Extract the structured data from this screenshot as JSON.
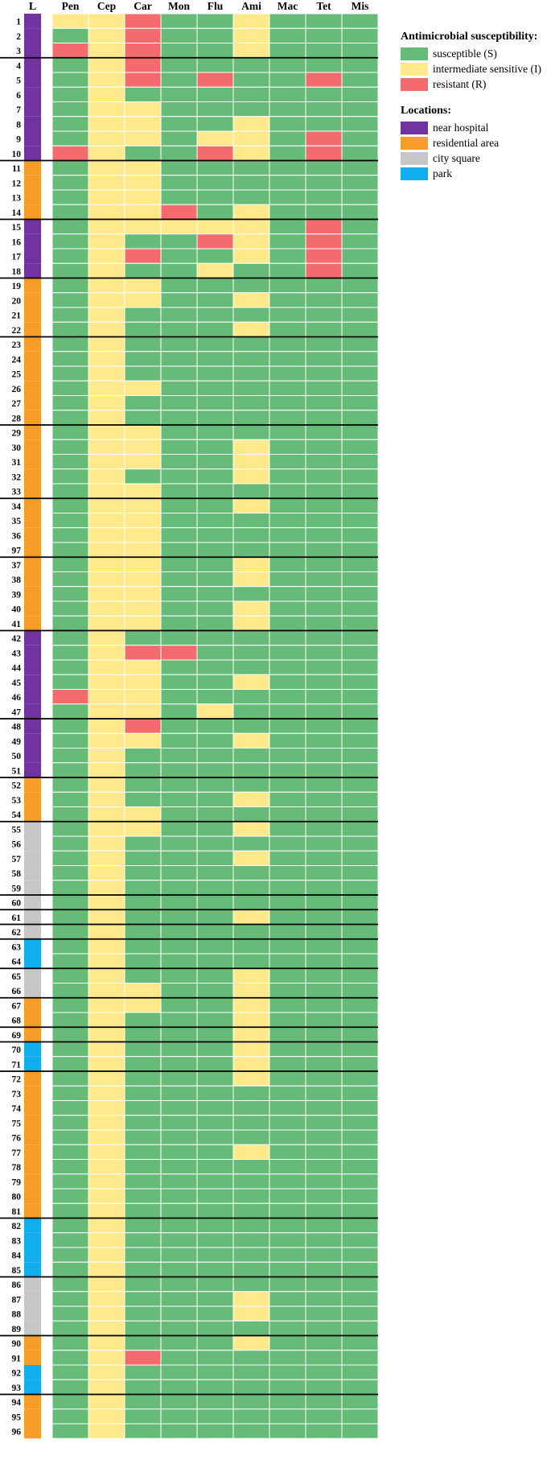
{
  "colors": {
    "S": "#66bb78",
    "I": "#ffe98a",
    "R": "#f36b6d",
    "near hospital": "#7033a0",
    "residential area": "#f79d27",
    "city square": "#c6c6c6",
    "park": "#12adef"
  },
  "legend": {
    "susceptibility_title": "Antimicrobial susceptibility:",
    "susceptibility_items": [
      {
        "key": "S",
        "label": "susceptible (S)"
      },
      {
        "key": "I",
        "label": "intermediate sensitive (I)"
      },
      {
        "key": "R",
        "label": "resistant (R)"
      }
    ],
    "locations_title": "Locations:",
    "location_items": [
      {
        "key": "near hospital",
        "label": "near hospital"
      },
      {
        "key": "residential area",
        "label": "residential area"
      },
      {
        "key": "city square",
        "label": "city square"
      },
      {
        "key": "park",
        "label": "park"
      }
    ]
  },
  "chart_data": {
    "type": "heatmap",
    "location_header": "L",
    "columns": [
      "Pen",
      "Cep",
      "Car",
      "Mon",
      "Flu",
      "Ami",
      "Mac",
      "Tet",
      "Mis"
    ],
    "rows": [
      {
        "id": "1",
        "loc": "near hospital",
        "v": "IIRSSISSS"
      },
      {
        "id": "2",
        "loc": "near hospital",
        "v": "SIRSSISSS"
      },
      {
        "id": "3",
        "loc": "near hospital",
        "v": "RIRSSISSS"
      },
      {
        "id": "4",
        "loc": "near hospital",
        "v": "SIRSSSSSS"
      },
      {
        "id": "5",
        "loc": "near hospital",
        "v": "SIRSRSSRS"
      },
      {
        "id": "6",
        "loc": "near hospital",
        "v": "SISSSSSSS"
      },
      {
        "id": "7",
        "loc": "near hospital",
        "v": "SIISSSSSS"
      },
      {
        "id": "8",
        "loc": "near hospital",
        "v": "SIISSISSS"
      },
      {
        "id": "9",
        "loc": "near hospital",
        "v": "SIISIISRS"
      },
      {
        "id": "10",
        "loc": "near hospital",
        "v": "RISSRISRS"
      },
      {
        "id": "11",
        "loc": "residential area",
        "v": "SIISSSSSS"
      },
      {
        "id": "12",
        "loc": "residential area",
        "v": "SIISSSSSS"
      },
      {
        "id": "13",
        "loc": "residential area",
        "v": "SIISSSSSS"
      },
      {
        "id": "14",
        "loc": "residential area",
        "v": "SIIRSISSS"
      },
      {
        "id": "15",
        "loc": "near hospital",
        "v": "SIIIIISRS"
      },
      {
        "id": "16",
        "loc": "near hospital",
        "v": "SISSRISRS"
      },
      {
        "id": "17",
        "loc": "near hospital",
        "v": "SIRSSISRS"
      },
      {
        "id": "18",
        "loc": "near hospital",
        "v": "SISSISSRS"
      },
      {
        "id": "19",
        "loc": "residential area",
        "v": "SIISSSSSS"
      },
      {
        "id": "20",
        "loc": "residential area",
        "v": "SIISSISSS"
      },
      {
        "id": "21",
        "loc": "residential area",
        "v": "SISSSSSSS"
      },
      {
        "id": "22",
        "loc": "residential area",
        "v": "SISSSISSS"
      },
      {
        "id": "23",
        "loc": "residential area",
        "v": "SISSSSSSS"
      },
      {
        "id": "24",
        "loc": "residential area",
        "v": "SISSSSSSS"
      },
      {
        "id": "25",
        "loc": "residential area",
        "v": "SISSSSSSS"
      },
      {
        "id": "26",
        "loc": "residential area",
        "v": "SIISSSSSS"
      },
      {
        "id": "27",
        "loc": "residential area",
        "v": "SISSSSSSS"
      },
      {
        "id": "28",
        "loc": "residential area",
        "v": "SISSSSSSS"
      },
      {
        "id": "29",
        "loc": "residential area",
        "v": "SIISSSSSS"
      },
      {
        "id": "30",
        "loc": "residential area",
        "v": "SIISSISSS"
      },
      {
        "id": "31",
        "loc": "residential area",
        "v": "SIISSISSS"
      },
      {
        "id": "32",
        "loc": "residential area",
        "v": "SISSSISSS"
      },
      {
        "id": "33",
        "loc": "residential area",
        "v": "SIISSSSSS"
      },
      {
        "id": "34",
        "loc": "residential area",
        "v": "SIISSISSS"
      },
      {
        "id": "35",
        "loc": "residential area",
        "v": "SIISSSSSS"
      },
      {
        "id": "36",
        "loc": "residential area",
        "v": "SIISSSSSS"
      },
      {
        "id": "97",
        "loc": "residential area",
        "v": "SIISSSSSS"
      },
      {
        "id": "37",
        "loc": "residential area",
        "v": "SIISSISSS"
      },
      {
        "id": "38",
        "loc": "residential area",
        "v": "SIISSISSS"
      },
      {
        "id": "39",
        "loc": "residential area",
        "v": "SIISSSSSS"
      },
      {
        "id": "40",
        "loc": "residential area",
        "v": "SIISSISSS"
      },
      {
        "id": "41",
        "loc": "residential area",
        "v": "SIISSISSS"
      },
      {
        "id": "42",
        "loc": "near hospital",
        "v": "SISSSSSSS"
      },
      {
        "id": "43",
        "loc": "near hospital",
        "v": "SIRRSSSSS"
      },
      {
        "id": "44",
        "loc": "near hospital",
        "v": "SIISSSSSS"
      },
      {
        "id": "45",
        "loc": "near hospital",
        "v": "SIISSISSS"
      },
      {
        "id": "46",
        "loc": "near hospital",
        "v": "RIISSSSSS"
      },
      {
        "id": "47",
        "loc": "near hospital",
        "v": "SIISISSSS"
      },
      {
        "id": "48",
        "loc": "near hospital",
        "v": "SIRSSSSSS"
      },
      {
        "id": "49",
        "loc": "near hospital",
        "v": "SIISSISSS"
      },
      {
        "id": "50",
        "loc": "near hospital",
        "v": "SISSSSSSS"
      },
      {
        "id": "51",
        "loc": "near hospital",
        "v": "SISSSSSSS"
      },
      {
        "id": "52",
        "loc": "residential area",
        "v": "SISSSSSSS"
      },
      {
        "id": "53",
        "loc": "residential area",
        "v": "SISSSISSS"
      },
      {
        "id": "54",
        "loc": "residential area",
        "v": "SIISSSSSS"
      },
      {
        "id": "55",
        "loc": "city square",
        "v": "SIISSISSS"
      },
      {
        "id": "56",
        "loc": "city square",
        "v": "SISSSSSSS"
      },
      {
        "id": "57",
        "loc": "city square",
        "v": "SISSSISSS"
      },
      {
        "id": "58",
        "loc": "city square",
        "v": "SISSSSSSS"
      },
      {
        "id": "59",
        "loc": "city square",
        "v": "SISSSSSSS"
      },
      {
        "id": "60",
        "loc": "city square",
        "v": "SISSSSSSS"
      },
      {
        "id": "61",
        "loc": "city square",
        "v": "SISSSISSS"
      },
      {
        "id": "62",
        "loc": "city square",
        "v": "SISSSSSSS"
      },
      {
        "id": "63",
        "loc": "park",
        "v": "SISSSSSSS"
      },
      {
        "id": "64",
        "loc": "park",
        "v": "SISSSSSSS"
      },
      {
        "id": "65",
        "loc": "city square",
        "v": "SISSSISSS"
      },
      {
        "id": "66",
        "loc": "city square",
        "v": "SIISSISSS"
      },
      {
        "id": "67",
        "loc": "residential area",
        "v": "SIISSISSS"
      },
      {
        "id": "68",
        "loc": "residential area",
        "v": "SISSSISSS"
      },
      {
        "id": "69",
        "loc": "residential area",
        "v": "SISSSISSS"
      },
      {
        "id": "70",
        "loc": "park",
        "v": "SISSSISSS"
      },
      {
        "id": "71",
        "loc": "park",
        "v": "SISSSISSS"
      },
      {
        "id": "72",
        "loc": "residential area",
        "v": "SISSSISSS"
      },
      {
        "id": "73",
        "loc": "residential area",
        "v": "SISSSSSSS"
      },
      {
        "id": "74",
        "loc": "residential area",
        "v": "SISSSSSSS"
      },
      {
        "id": "75",
        "loc": "residential area",
        "v": "SISSSSSSS"
      },
      {
        "id": "76",
        "loc": "residential area",
        "v": "SISSSSSSS"
      },
      {
        "id": "77",
        "loc": "residential area",
        "v": "SISSSISSS"
      },
      {
        "id": "78",
        "loc": "residential area",
        "v": "SISSSSSSS"
      },
      {
        "id": "79",
        "loc": "residential area",
        "v": "SISSSSSSS"
      },
      {
        "id": "80",
        "loc": "residential area",
        "v": "SISSSSSSS"
      },
      {
        "id": "81",
        "loc": "residential area",
        "v": "SISSSSSSS"
      },
      {
        "id": "82",
        "loc": "park",
        "v": "SISSSSSSS"
      },
      {
        "id": "83",
        "loc": "park",
        "v": "SISSSSSSS"
      },
      {
        "id": "84",
        "loc": "park",
        "v": "SISSSSSSS"
      },
      {
        "id": "85",
        "loc": "park",
        "v": "SISSSSSSS"
      },
      {
        "id": "86",
        "loc": "city square",
        "v": "SISSSSSSS"
      },
      {
        "id": "87",
        "loc": "city square",
        "v": "SISSSISSS"
      },
      {
        "id": "88",
        "loc": "city square",
        "v": "SISSSISSS"
      },
      {
        "id": "89",
        "loc": "city square",
        "v": "SISSSSSSS"
      },
      {
        "id": "90",
        "loc": "residential area",
        "v": "SISSSISSS"
      },
      {
        "id": "91",
        "loc": "residential area",
        "v": "SIRSSSSSS"
      },
      {
        "id": "92",
        "loc": "park",
        "v": "SISSSSSSS"
      },
      {
        "id": "93",
        "loc": "park",
        "v": "SISSSSSSS"
      },
      {
        "id": "94",
        "loc": "residential area",
        "v": "SISSSSSSS"
      },
      {
        "id": "95",
        "loc": "residential area",
        "v": "SISSSSSSS"
      },
      {
        "id": "96",
        "loc": "residential area",
        "v": "SISSSSSSS"
      }
    ],
    "group_separators_after": [
      "3",
      "10",
      "14",
      "18",
      "22",
      "28",
      "33",
      "97",
      "41",
      "47",
      "51",
      "54",
      "59",
      "60",
      "61",
      "62",
      "64",
      "66",
      "68",
      "69",
      "71",
      "81",
      "85",
      "89",
      "93"
    ]
  }
}
